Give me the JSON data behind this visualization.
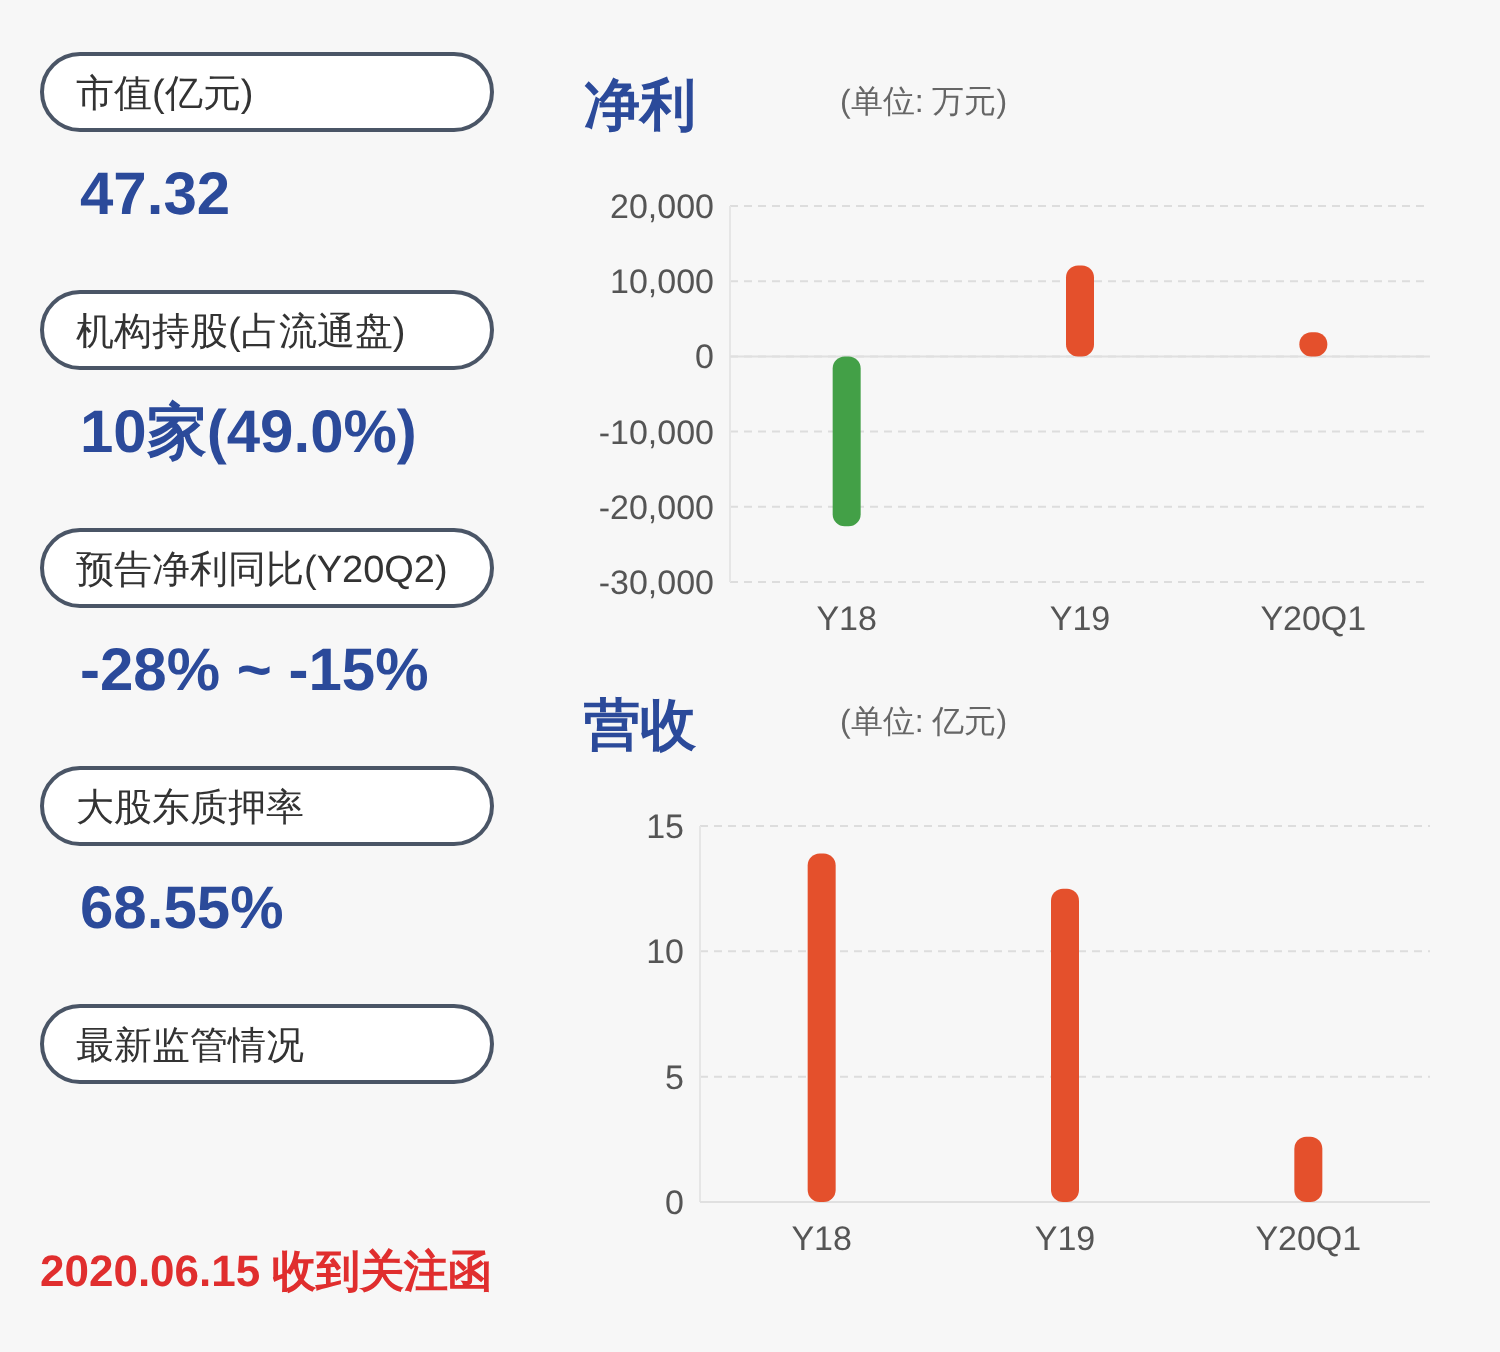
{
  "chart_data": [
    {
      "type": "other",
      "annotations": [
        "市值(亿元)",
        "47.32",
        "机构持股(占流通盘)",
        "10家(49.0%)",
        "预告净利同比(Y20Q2)",
        "-28% ~ -15%",
        "大股东质押率",
        "68.55%",
        "最新监管情况",
        "2020.06.15 收到关注函"
      ]
    },
    {
      "type": "bar",
      "title": "净利",
      "subtitle": "(单位: 万元)",
      "categories": [
        "Y18",
        "Y19",
        "Y20Q1"
      ],
      "values": [
        -22600,
        12100,
        3200
      ],
      "colors": [
        "#43a047",
        "#e4502c",
        "#e4502c"
      ],
      "ylim": [
        -30000,
        20000
      ],
      "yticks": [
        {
          "value": -30000,
          "label": "-30,000"
        },
        {
          "value": -20000,
          "label": "-20,000"
        },
        {
          "value": -10000,
          "label": "-10,000"
        },
        0,
        {
          "value": 10000,
          "label": "10,000"
        },
        {
          "value": 20000,
          "label": "20,000"
        }
      ],
      "grid": "y"
    },
    {
      "type": "bar",
      "title": "营收",
      "subtitle": "(单位: 亿元)",
      "categories": [
        "Y18",
        "Y19",
        "Y20Q1"
      ],
      "values": [
        13.9,
        12.5,
        2.6
      ],
      "colors": [
        "#e4502c",
        "#e4502c",
        "#e4502c"
      ],
      "ylim": [
        0,
        15
      ],
      "yticks": [
        0,
        5,
        10,
        15
      ],
      "grid": "y"
    }
  ]
}
